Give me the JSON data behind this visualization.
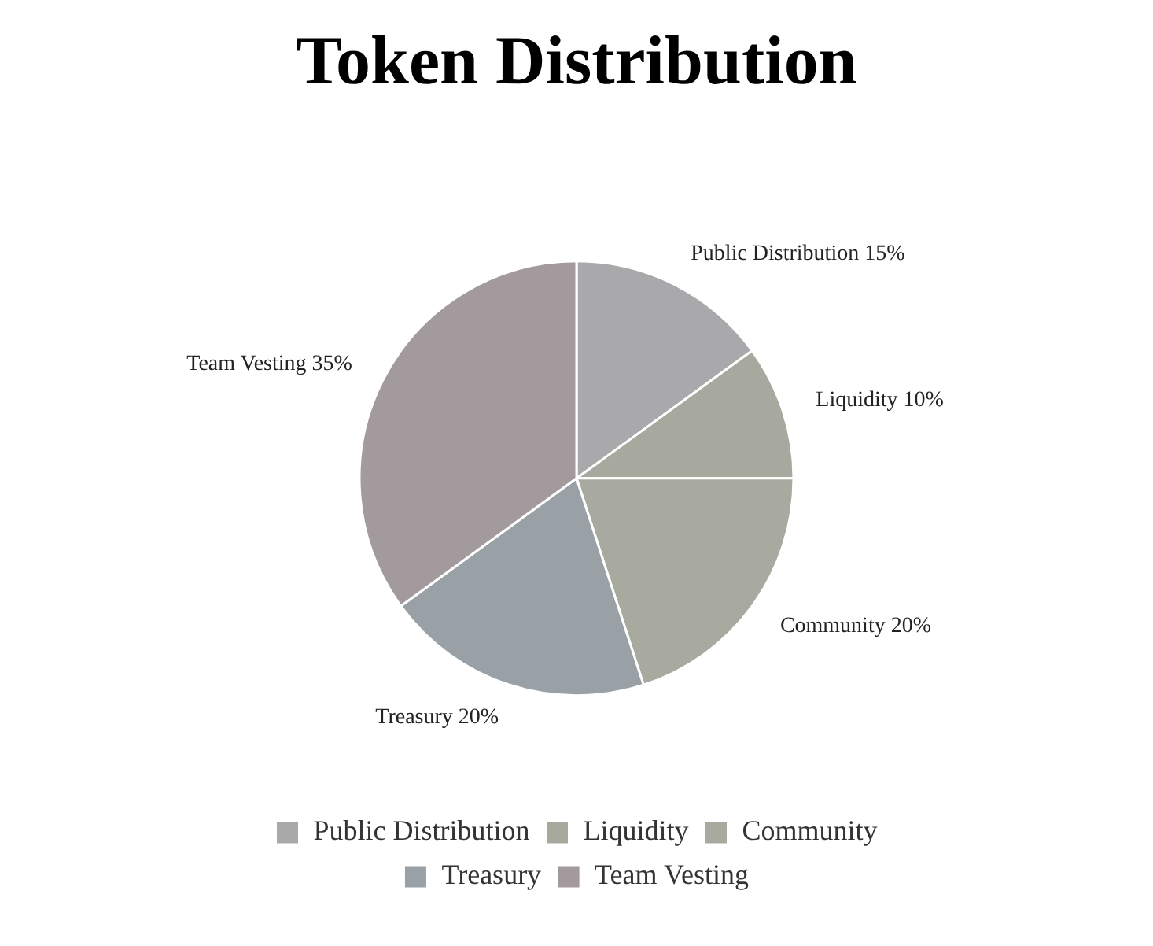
{
  "chart_data": {
    "type": "pie",
    "title": "Token Distribution",
    "categories": [
      "Public Distribution",
      "Liquidity",
      "Community",
      "Treasury",
      "Team Vesting"
    ],
    "values": [
      15,
      10,
      20,
      20,
      35
    ],
    "colors": [
      "#a9a9ab",
      "#a7a89e",
      "#a9aa9f",
      "#99a1a7",
      "#a39a9e"
    ],
    "value_labels": [
      "15%",
      "10%",
      "20%",
      "20%",
      "35%"
    ],
    "legend": "bottom"
  }
}
